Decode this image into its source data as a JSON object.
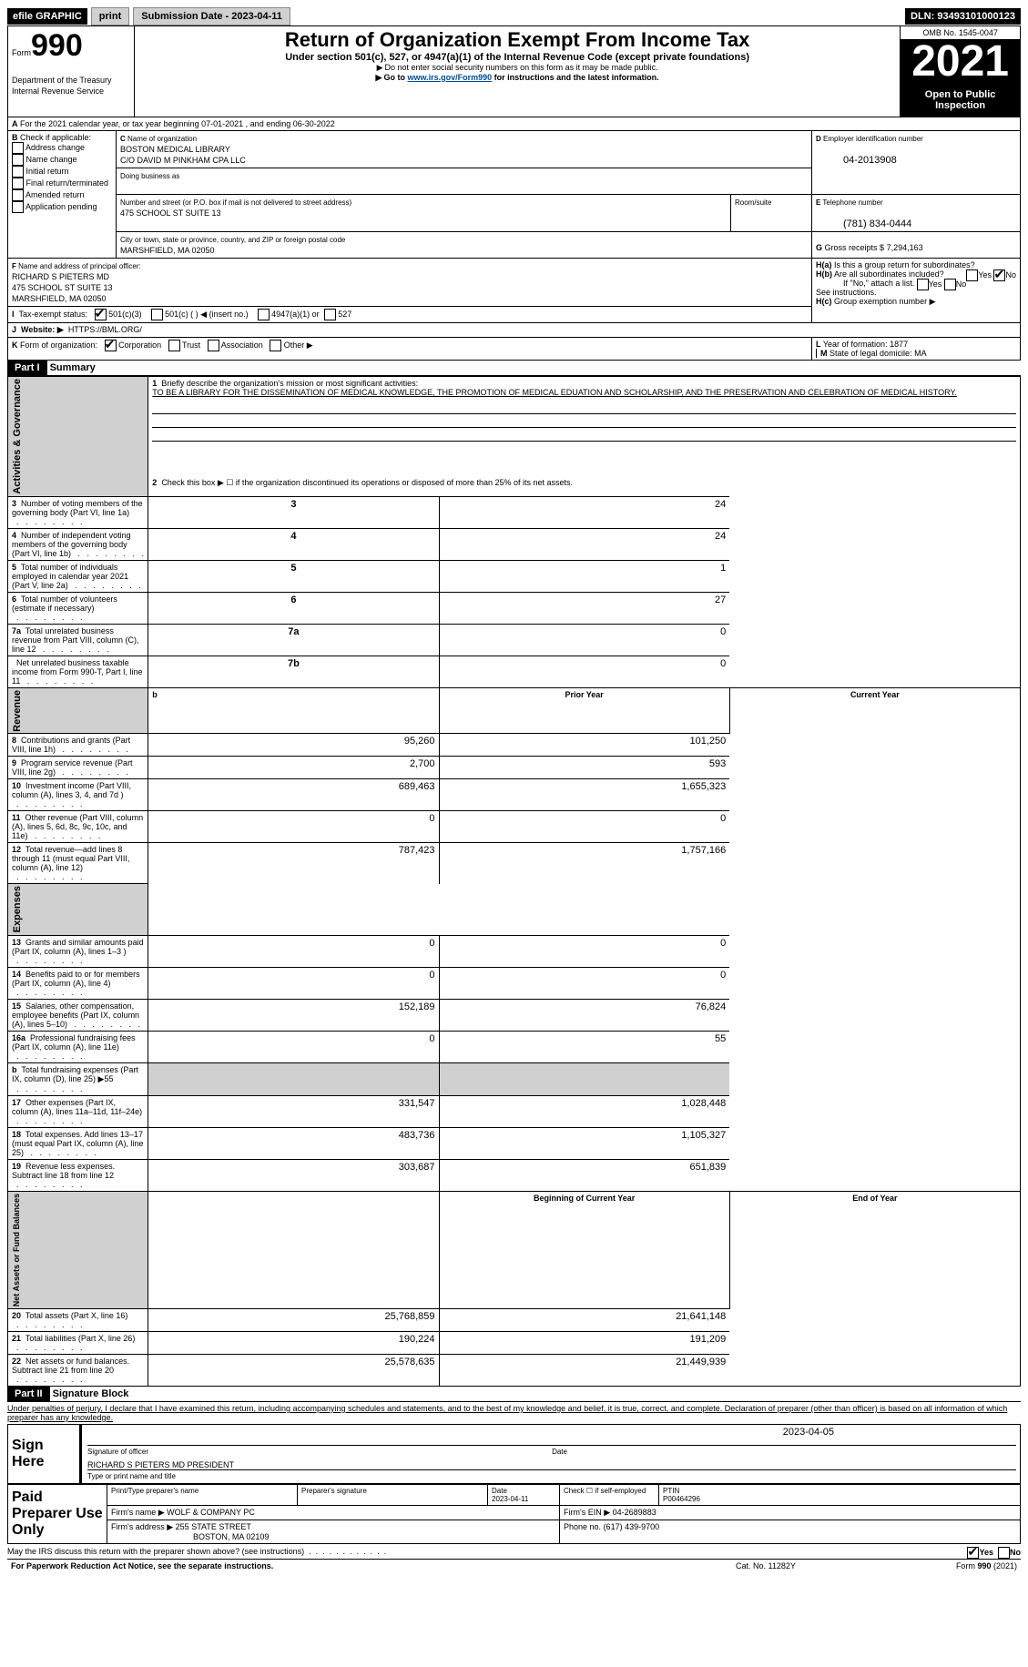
{
  "topbar": {
    "efile": "efile GRAPHIC",
    "print": "print",
    "subdate_lbl": "Submission Date - 2023-04-11",
    "dln_lbl": "DLN: 93493101000123"
  },
  "hdr": {
    "form_lbl": "Form",
    "form990": "990",
    "title": "Return of Organization Exempt From Income Tax",
    "sub1": "Under section 501(c), 527, or 4947(a)(1) of the Internal Revenue Code (except private foundations)",
    "sub2": "Do not enter social security numbers on this form as it may be made public.",
    "sub3_pre": "Go to ",
    "sub3_link": "www.irs.gov/Form990",
    "sub3_post": " for instructions and the latest information.",
    "omb": "OMB No. 1545-0047",
    "yr": "2021",
    "pub": "Open to Public Inspection",
    "dept": "Department of the Treasury",
    "irs": "Internal Revenue Service"
  },
  "A": {
    "line": "For the 2021 calendar year, or tax year beginning 07-01-2021     , and ending 06-30-2022"
  },
  "B": {
    "lbl": "Check if applicable:",
    "items": [
      "Address change",
      "Name change",
      "Initial return",
      "Final return/terminated",
      "Amended return",
      "Application pending"
    ]
  },
  "C": {
    "name_lbl": "Name of organization",
    "name1": "BOSTON MEDICAL LIBRARY",
    "name2": "C/O DAVID M PINKHAM CPA LLC",
    "dba_lbl": "Doing business as",
    "dba": "",
    "addr_lbl": "Number and street (or P.O. box if mail is not delivered to street address)",
    "room_lbl": "Room/suite",
    "addr": "475 SCHOOL ST SUITE 13",
    "city_lbl": "City or town, state or province, country, and ZIP or foreign postal code",
    "city": "MARSHFIELD, MA  02050"
  },
  "D": {
    "lbl": "Employer identification number",
    "val": "04-2013908"
  },
  "E": {
    "lbl": "Telephone number",
    "val": "(781) 834-0444"
  },
  "G": {
    "lbl": "Gross receipts $",
    "val": "7,294,163"
  },
  "F": {
    "lbl": "Name and address of principal officer:",
    "l1": "RICHARD S PIETERS MD",
    "l2": "475 SCHOOL ST SUITE 13",
    "l3": "MARSHFIELD, MA  02050"
  },
  "H": {
    "a": "Is this a group return for subordinates?",
    "b": "Are all subordinates included?",
    "bnote": "If \"No,\" attach a list. See instructions.",
    "c": "Group exemption number ▶",
    "yes": "Yes",
    "no": "No"
  },
  "I": {
    "lbl": "Tax-exempt status:",
    "c3": "501(c)(3)",
    "c": "501(c) (    ) ◀ (insert no.)",
    "f": "4947(a)(1) or",
    "f2": "527"
  },
  "J": {
    "lbl": "Website: ▶",
    "val": "HTTPS://BML.ORG/"
  },
  "K": {
    "lbl": "Form of organization:",
    "corp": "Corporation",
    "trust": "Trust",
    "assoc": "Association",
    "other": "Other ▶"
  },
  "L": {
    "lbl": "Year of formation:",
    "val": "1877"
  },
  "M": {
    "lbl": "State of legal domicile:",
    "val": "MA"
  },
  "P1": {
    "lbl": "Part I",
    "title": "Summary",
    "q1": "Briefly describe the organization's mission or most significant activities:",
    "mission": "TO BE A LIBRARY FOR THE DISSEMINATION OF MEDICAL KNOWLEDGE, THE PROMOTION OF MEDICAL EDUATION AND SCHOLARSHIP, AND THE PRESERVATION AND CELEBRATION OF MEDICAL HISTORY.",
    "q2": "Check this box ▶ ☐  if the organization discontinued its operations or disposed of more than 25% of its net assets.",
    "rows": [
      {
        "n": "3",
        "t": "Number of voting members of the governing body (Part VI, line 1a)",
        "box": "3",
        "v": "24"
      },
      {
        "n": "4",
        "t": "Number of independent voting members of the governing body (Part VI, line 1b)",
        "box": "4",
        "v": "24"
      },
      {
        "n": "5",
        "t": "Total number of individuals employed in calendar year 2021 (Part V, line 2a)",
        "box": "5",
        "v": "1"
      },
      {
        "n": "6",
        "t": "Total number of volunteers (estimate if necessary)",
        "box": "6",
        "v": "27"
      },
      {
        "n": "7a",
        "t": "Total unrelated business revenue from Part VIII, column (C), line 12",
        "box": "7a",
        "v": "0"
      },
      {
        "n": "",
        "t": "Net unrelated business taxable income from Form 990-T, Part I, line 11",
        "box": "7b",
        "v": "0"
      }
    ],
    "col_prior": "Prior Year",
    "col_cur": "Current Year",
    "gov_lbl": "Activities & Governance",
    "rev_lbl": "Revenue",
    "exp_lbl": "Expenses",
    "net_lbl": "Net Assets or Fund Balances",
    "rev": [
      {
        "n": "8",
        "t": "Contributions and grants (Part VIII, line 1h)",
        "p": "95,260",
        "c": "101,250"
      },
      {
        "n": "9",
        "t": "Program service revenue (Part VIII, line 2g)",
        "p": "2,700",
        "c": "593"
      },
      {
        "n": "10",
        "t": "Investment income (Part VIII, column (A), lines 3, 4, and 7d )",
        "p": "689,463",
        "c": "1,655,323"
      },
      {
        "n": "11",
        "t": "Other revenue (Part VIII, column (A), lines 5, 6d, 8c, 9c, 10c, and 11e)",
        "p": "0",
        "c": "0"
      },
      {
        "n": "12",
        "t": "Total revenue—add lines 8 through 11 (must equal Part VIII, column (A), line 12)",
        "p": "787,423",
        "c": "1,757,166"
      }
    ],
    "exp": [
      {
        "n": "13",
        "t": "Grants and similar amounts paid (Part IX, column (A), lines 1–3 )",
        "p": "0",
        "c": "0"
      },
      {
        "n": "14",
        "t": "Benefits paid to or for members (Part IX, column (A), line 4)",
        "p": "0",
        "c": "0"
      },
      {
        "n": "15",
        "t": "Salaries, other compensation, employee benefits (Part IX, column (A), lines 5–10)",
        "p": "152,189",
        "c": "76,824"
      },
      {
        "n": "16a",
        "t": "Professional fundraising fees (Part IX, column (A), line 11e)",
        "p": "0",
        "c": "55"
      },
      {
        "n": "b",
        "t": "Total fundraising expenses (Part IX, column (D), line 25) ▶55",
        "p": "",
        "c": "",
        "grey": true
      },
      {
        "n": "17",
        "t": "Other expenses (Part IX, column (A), lines 11a–11d, 11f–24e)",
        "p": "331,547",
        "c": "1,028,448"
      },
      {
        "n": "18",
        "t": "Total expenses. Add lines 13–17 (must equal Part IX, column (A), line 25)",
        "p": "483,736",
        "c": "1,105,327"
      },
      {
        "n": "19",
        "t": "Revenue less expenses. Subtract line 18 from line 12",
        "p": "303,687",
        "c": "651,839"
      }
    ],
    "col_beg": "Beginning of Current Year",
    "col_end": "End of Year",
    "net": [
      {
        "n": "20",
        "t": "Total assets (Part X, line 16)",
        "p": "25,768,859",
        "c": "21,641,148"
      },
      {
        "n": "21",
        "t": "Total liabilities (Part X, line 26)",
        "p": "190,224",
        "c": "191,209"
      },
      {
        "n": "22",
        "t": "Net assets or fund balances. Subtract line 21 from line 20",
        "p": "25,578,635",
        "c": "21,449,939"
      }
    ]
  },
  "P2": {
    "lbl": "Part II",
    "title": "Signature Block",
    "declare": "Under penalties of perjury, I declare that I have examined this return, including accompanying schedules and statements, and to the best of my knowledge and belief, it is true, correct, and complete. Declaration of preparer (other than officer) is based on all information of which preparer has any knowledge.",
    "sign_here": "Sign Here",
    "sig_lbl": "Signature of officer",
    "date": "2023-04-05",
    "name": "RICHARD S PIETERS MD  PRESIDENT",
    "name_lbl": "Type or print name and title",
    "paid": "Paid Preparer Use Only",
    "pp_name_lbl": "Print/Type preparer's name",
    "pp_sig_lbl": "Preparer's signature",
    "pp_date_lbl": "Date",
    "pp_date": "2023-04-11",
    "pp_self": "Check ☐ if self-employed",
    "pp_ptin_lbl": "PTIN",
    "pp_ptin": "P00464296",
    "firm_name_lbl": "Firm's name     ▶",
    "firm_name": "WOLF & COMPANY PC",
    "firm_ein_lbl": "Firm's EIN ▶",
    "firm_ein": "04-2689883",
    "firm_addr_lbl": "Firm's address ▶",
    "firm_addr1": "255 STATE STREET",
    "firm_addr2": "BOSTON, MA  02109",
    "phone_lbl": "Phone no.",
    "phone": "(617) 439-9700",
    "discuss": "May the IRS discuss this return with the preparer shown above? (see instructions)",
    "paperwork": "For Paperwork Reduction Act Notice, see the separate instructions.",
    "cat": "Cat. No. 11282Y",
    "foot": "Form 990 (2021)"
  }
}
